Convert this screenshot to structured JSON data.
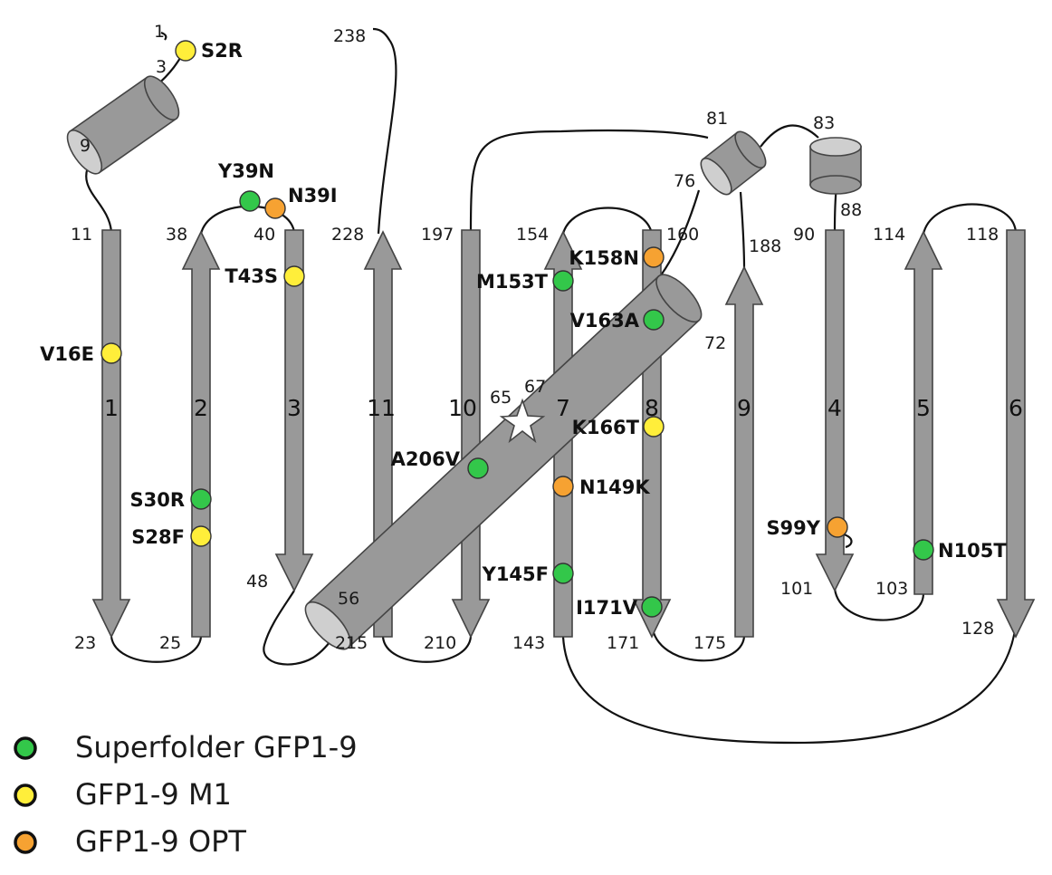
{
  "colors": {
    "superfolder": "#33c74a",
    "m1": "#ffee3a",
    "opt": "#f6a232",
    "element_fill": "#999999"
  },
  "strand_labels": [
    "1",
    "2",
    "3",
    "11",
    "10",
    "7",
    "8",
    "9",
    "4",
    "5",
    "6"
  ],
  "residues": {
    "r1": "1",
    "r3": "3",
    "r9": "9",
    "r11": "11",
    "r23": "23",
    "r25": "25",
    "r38": "38",
    "r40": "40",
    "r48": "48",
    "r56": "56",
    "r65": "65",
    "r67": "67",
    "r72": "72",
    "r76": "76",
    "r81": "81",
    "r83": "83",
    "r88": "88",
    "r90": "90",
    "r101": "101",
    "r103": "103",
    "r114": "114",
    "r118": "118",
    "r128": "128",
    "r143": "143",
    "r154": "154",
    "r160": "160",
    "r171": "171",
    "r175": "175",
    "r188": "188",
    "r197": "197",
    "r210": "210",
    "r215": "215",
    "r228": "228",
    "r238": "238"
  },
  "mutations": [
    {
      "label": "S2R",
      "group": "m1"
    },
    {
      "label": "Y39N",
      "group": "superfolder"
    },
    {
      "label": "N39I",
      "group": "opt"
    },
    {
      "label": "T43S",
      "group": "m1"
    },
    {
      "label": "V16E",
      "group": "m1"
    },
    {
      "label": "S30R",
      "group": "superfolder"
    },
    {
      "label": "S28F",
      "group": "m1"
    },
    {
      "label": "A206V",
      "group": "superfolder"
    },
    {
      "label": "M153T",
      "group": "superfolder"
    },
    {
      "label": "K158N",
      "group": "opt"
    },
    {
      "label": "V163A",
      "group": "superfolder"
    },
    {
      "label": "K166T",
      "group": "m1"
    },
    {
      "label": "N149K",
      "group": "opt"
    },
    {
      "label": "Y145F",
      "group": "superfolder"
    },
    {
      "label": "I171V",
      "group": "superfolder"
    },
    {
      "label": "S99Y",
      "group": "opt"
    },
    {
      "label": "N105T",
      "group": "superfolder"
    }
  ],
  "legend": [
    {
      "label": "Superfolder GFP1-9",
      "group": "superfolder"
    },
    {
      "label": "GFP1-9 M1",
      "group": "m1"
    },
    {
      "label": "GFP1-9 OPT",
      "group": "opt"
    }
  ]
}
